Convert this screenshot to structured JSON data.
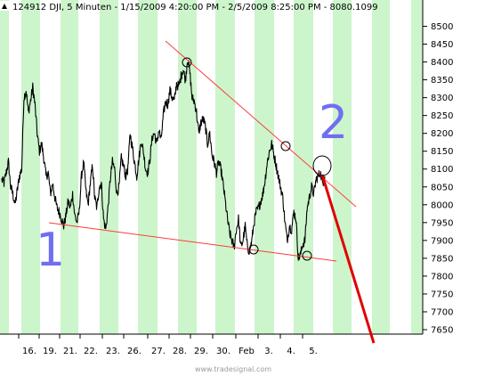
{
  "chart_data": {
    "type": "line",
    "title": "124912  DJI, 5 Minuten - 1/15/2009 4:20:00 PM - 2/5/2009 8:25:00 PM - 8080.1099",
    "xlabel": "",
    "ylabel": "",
    "x_ticks": [
      "16.",
      "19.",
      "21.",
      "22.",
      "23.",
      "26.",
      "27.",
      "28.",
      "29.",
      "30.",
      "Feb",
      "3.",
      "4.",
      "5."
    ],
    "y_ticks": [
      8500,
      8450,
      8400,
      8350,
      8300,
      8250,
      8200,
      8150,
      8100,
      8050,
      8000,
      7950,
      7900,
      7850,
      7800,
      7750,
      7700,
      7650
    ],
    "ylim": [
      7630,
      8520
    ],
    "grid": "alternating vertical bands (green / white)",
    "series": [
      {
        "values": [
          8070,
          8060,
          8090,
          8120,
          8050,
          8030,
          8000,
          8040,
          8080,
          8100,
          8300,
          8320,
          8260,
          8290,
          8330,
          8280,
          8200,
          8150,
          8170,
          8130,
          8080,
          8090,
          8030,
          8060,
          8020,
          7990,
          7980,
          7960,
          7940,
          7970,
          8010,
          7990,
          8030,
          7970,
          7950,
          7980,
          8080,
          8120,
          8040,
          8000,
          8060,
          8110,
          8020,
          7990,
          8050,
          8060,
          7960,
          7930,
          7990,
          8070,
          8120,
          8100,
          8030,
          8050,
          8130,
          8110,
          8080,
          8100,
          8200,
          8160,
          8120,
          8080,
          8130,
          8180,
          8150,
          8100,
          8090,
          8130,
          8190,
          8200,
          8170,
          8210,
          8180,
          8250,
          8290,
          8280,
          8320,
          8300,
          8290,
          8340,
          8330,
          8360,
          8380,
          8350,
          8410,
          8370,
          8300,
          8290,
          8260,
          8200,
          8230,
          8240,
          8220,
          8170,
          8200,
          8140,
          8120,
          8090,
          8120,
          8100,
          8060,
          8010,
          7960,
          7920,
          7900,
          7880,
          7930,
          7960,
          7880,
          7900,
          7940,
          7880,
          7870,
          7900,
          7950,
          7980,
          7990,
          8010,
          8030,
          8070,
          8120,
          8150,
          8170,
          8140,
          8110,
          8080,
          8050,
          8020,
          7950,
          7900,
          7940,
          7930,
          7980,
          7960,
          7850,
          7860,
          7890,
          7900,
          7990,
          8020,
          8050,
          8030,
          8070,
          8080,
          8090,
          8060,
          8080
        ]
      }
    ],
    "annotations": [
      "1",
      "2"
    ]
  },
  "watermark": "www.tradesignal.com",
  "colors": {
    "band_green": "#ccf5cc",
    "trend_line": "#ff3b3b",
    "arrow": "#e00000",
    "price": "#000000",
    "label": "#6f6ff2"
  }
}
